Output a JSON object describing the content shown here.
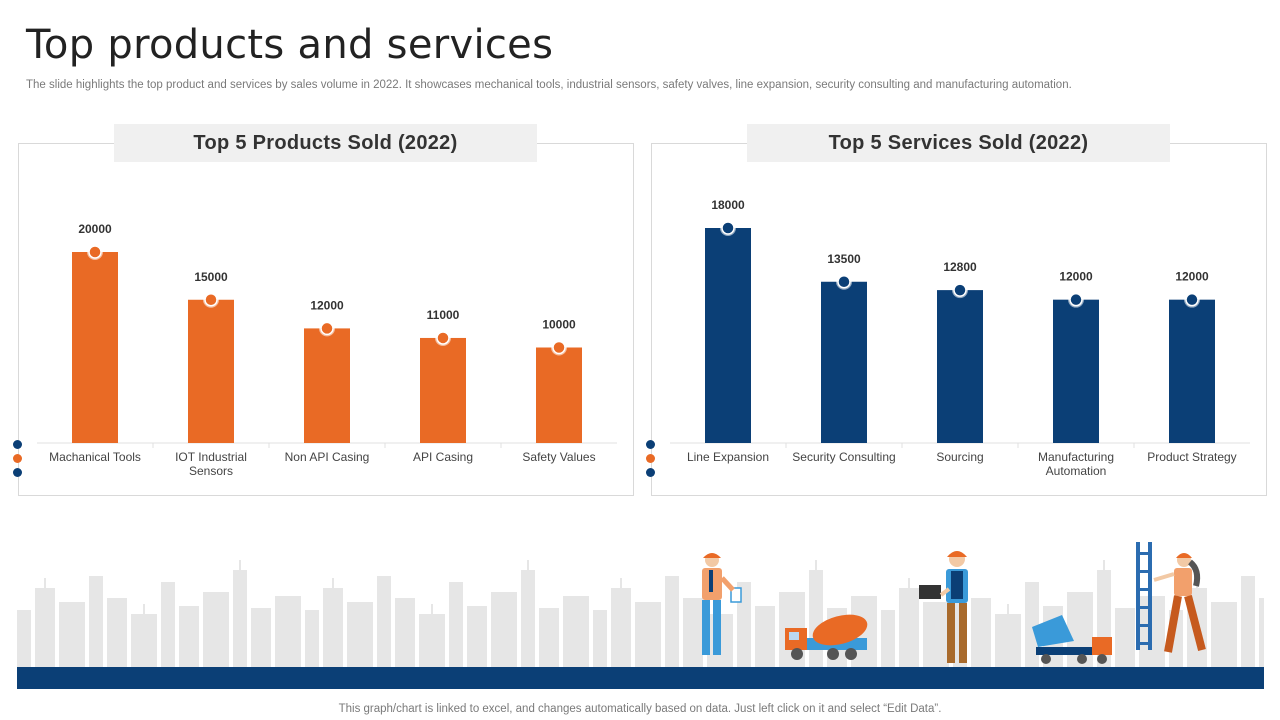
{
  "title": "Top products and services",
  "subtitle": "The slide highlights the top product and services by sales volume in 2022. It showcases mechanical tools, industrial sensors, safety valves, line expansion, security consulting and manufacturing automation.",
  "footer": "This graph/chart is linked to excel, and changes automatically based on data. Just left click on it and select “Edit Data”.",
  "colors": {
    "orange": "#e96a25",
    "blue": "#0b3f76",
    "ground": "#0b3f76",
    "skyline": "#e6e6e6"
  },
  "chart_data": [
    {
      "type": "bar",
      "title": "Top 5 Products Sold (2022)",
      "categories": [
        "Machanical Tools",
        "IOT Industrial Sensors",
        "Non API Casing",
        "API Casing",
        "Safety Values"
      ],
      "values": [
        20000,
        15000,
        12000,
        11000,
        10000
      ],
      "xlabel": "",
      "ylabel": "",
      "ylim": [
        0,
        20000
      ],
      "color": "#e96a25",
      "grid": false
    },
    {
      "type": "bar",
      "title": "Top 5 Services Sold (2022)",
      "categories": [
        "Line Expansion",
        "Security Consulting",
        "Sourcing",
        "Manufacturing Automation",
        "Product Strategy"
      ],
      "values": [
        18000,
        13500,
        12800,
        12000,
        12000
      ],
      "xlabel": "",
      "ylabel": "",
      "ylim": [
        0,
        18000
      ],
      "color": "#0b3f76",
      "grid": false
    }
  ]
}
